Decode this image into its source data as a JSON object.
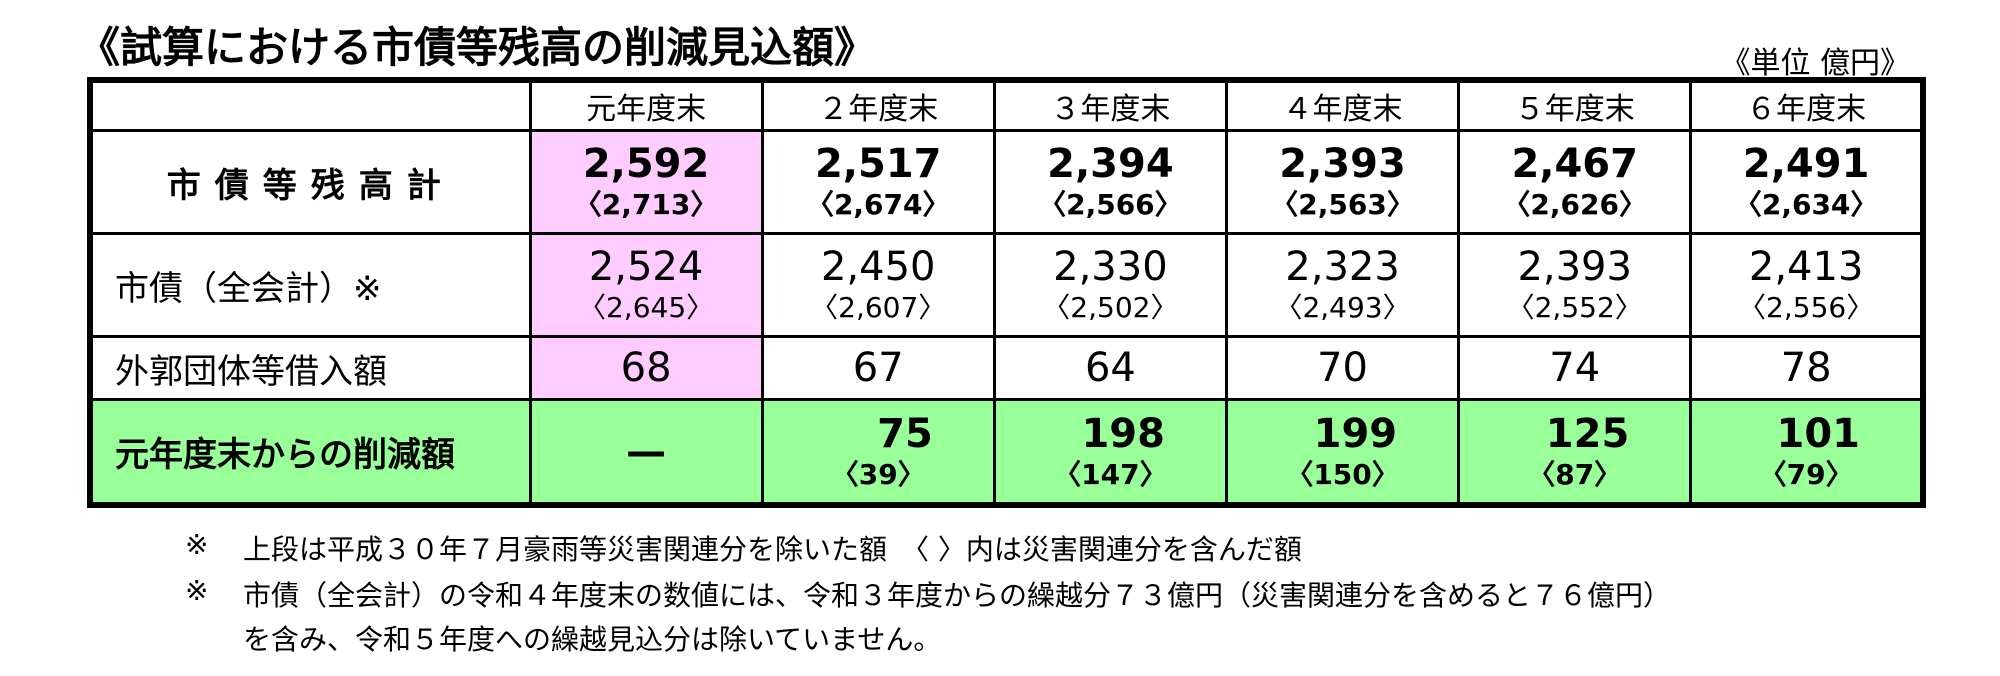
{
  "title": "《試算における市債等残高の削減見込額》",
  "unit": "《単位 億円》",
  "table": {
    "columns": [
      "元年度末",
      "２年度末",
      "３年度末",
      "４年度末",
      "５年度末",
      "６年度末"
    ],
    "rows": [
      {
        "label": "市債等残高計",
        "cells": [
          {
            "main": "2,592",
            "sub": "〈2,713〉"
          },
          {
            "main": "2,517",
            "sub": "〈2,674〉"
          },
          {
            "main": "2,394",
            "sub": "〈2,566〉"
          },
          {
            "main": "2,393",
            "sub": "〈2,563〉"
          },
          {
            "main": "2,467",
            "sub": "〈2,626〉"
          },
          {
            "main": "2,491",
            "sub": "〈2,634〉"
          }
        ]
      },
      {
        "label": "市債（全会計）※",
        "cells": [
          {
            "main": "2,524",
            "sub": "〈2,645〉"
          },
          {
            "main": "2,450",
            "sub": "〈2,607〉"
          },
          {
            "main": "2,330",
            "sub": "〈2,502〉"
          },
          {
            "main": "2,323",
            "sub": "〈2,493〉"
          },
          {
            "main": "2,393",
            "sub": "〈2,552〉"
          },
          {
            "main": "2,413",
            "sub": "〈2,556〉"
          }
        ]
      },
      {
        "label": "外郭団体等借入額",
        "cells": [
          {
            "main": "68"
          },
          {
            "main": "67"
          },
          {
            "main": "64"
          },
          {
            "main": "70"
          },
          {
            "main": "74"
          },
          {
            "main": "78"
          }
        ]
      },
      {
        "label": "元年度末からの削減額",
        "cells": [
          {
            "main": "—"
          },
          {
            "main": "75",
            "sub": "〈39〉"
          },
          {
            "main": "198",
            "sub": "〈147〉"
          },
          {
            "main": "199",
            "sub": "〈150〉"
          },
          {
            "main": "125",
            "sub": "〈87〉"
          },
          {
            "main": "101",
            "sub": "〈79〉"
          }
        ]
      }
    ]
  },
  "notes": [
    {
      "mark": "※",
      "lines": [
        "上段は平成３０年７月豪雨等災害関連分を除いた額　〈 〉内は災害関連分を含んだ額"
      ]
    },
    {
      "mark": "※",
      "lines": [
        "市債（全会計）の令和４年度末の数値には、令和３年度からの繰越分７３億円（災害関連分を含めると７６億円）",
        "を含み、令和５年度への繰越見込分は除いていません。"
      ]
    }
  ]
}
